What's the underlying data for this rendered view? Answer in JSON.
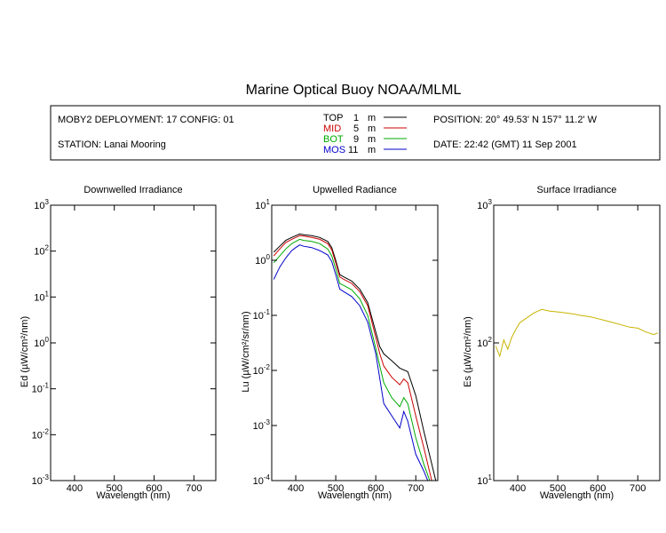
{
  "title": "Marine Optical Buoy NOAA/MLML",
  "header": {
    "deployment": "MOBY2 DEPLOYMENT: 17 CONFIG: 01",
    "station": "STATION: Lanai Mooring",
    "position": "POSITION: 20° 49.53' N   157° 11.2' W",
    "date": "DATE: 22:42 (GMT) 11 Sep 2001",
    "depths": [
      {
        "label": "TOP",
        "value": "1",
        "unit": "m",
        "color": "#000000"
      },
      {
        "label": "MID",
        "value": "5",
        "unit": "m",
        "color": "#cc0000"
      },
      {
        "label": "BOT",
        "value": "9",
        "unit": "m",
        "color": "#00aa00"
      },
      {
        "label": "MOS",
        "value": "11",
        "unit": "m",
        "color": "#0000cc"
      }
    ]
  },
  "chart_data": [
    {
      "type": "line",
      "title": "Downwelled Irradiance",
      "xlabel": "Wavelength (nm)",
      "ylabel": "Ed  (µW/cm²/nm)",
      "xlim": [
        340,
        755
      ],
      "ylim": [
        0.001,
        1000
      ],
      "yscale": "log",
      "xticks": [
        400,
        500,
        600,
        700
      ],
      "yticks": [
        {
          "base": "10",
          "exp": "3"
        },
        {
          "base": "10",
          "exp": "2"
        },
        {
          "base": "10",
          "exp": "1"
        },
        {
          "base": "10",
          "exp": "0"
        },
        {
          "base": "10",
          "exp": "-1"
        },
        {
          "base": "10",
          "exp": "-2"
        },
        {
          "base": "10",
          "exp": "-3"
        }
      ],
      "series": []
    },
    {
      "type": "line",
      "title": "Upwelled Radiance",
      "xlabel": "Wavelength (nm)",
      "ylabel": "Lu  (µW/cm²/sr/nm)",
      "xlim": [
        340,
        755
      ],
      "ylim": [
        0.0001,
        10
      ],
      "yscale": "log",
      "xticks": [
        400,
        500,
        600,
        700
      ],
      "yticks": [
        {
          "base": "10",
          "exp": "1"
        },
        {
          "base": "10",
          "exp": "0"
        },
        {
          "base": "10",
          "exp": "-1"
        },
        {
          "base": "10",
          "exp": "-2"
        },
        {
          "base": "10",
          "exp": "-3"
        },
        {
          "base": "10",
          "exp": "-4"
        }
      ],
      "series": [
        {
          "name": "TOP",
          "color": "#000000",
          "x": [
            345,
            360,
            375,
            390,
            400,
            410,
            420,
            440,
            460,
            480,
            490,
            500,
            510,
            520,
            540,
            560,
            580,
            600,
            610,
            620,
            640,
            660,
            680,
            700,
            720,
            740,
            750
          ],
          "y": [
            1.4,
            1.8,
            2.3,
            2.6,
            2.8,
            3.0,
            2.9,
            2.8,
            2.6,
            2.2,
            1.7,
            1.0,
            0.55,
            0.5,
            0.42,
            0.3,
            0.17,
            0.05,
            0.027,
            0.02,
            0.015,
            0.011,
            0.0095,
            0.0035,
            0.0008,
            0.0002,
            0.0001
          ]
        },
        {
          "name": "MID",
          "color": "#cc0000",
          "x": [
            345,
            360,
            375,
            390,
            400,
            410,
            420,
            440,
            460,
            480,
            490,
            500,
            510,
            520,
            540,
            560,
            580,
            600,
            610,
            620,
            640,
            660,
            670,
            680,
            700,
            720,
            740
          ],
          "y": [
            1.2,
            1.6,
            2.1,
            2.4,
            2.6,
            2.8,
            2.75,
            2.6,
            2.4,
            2.0,
            1.55,
            0.9,
            0.5,
            0.45,
            0.38,
            0.27,
            0.15,
            0.04,
            0.02,
            0.012,
            0.0075,
            0.0055,
            0.007,
            0.006,
            0.0015,
            0.0004,
            0.0001
          ]
        },
        {
          "name": "BOT",
          "color": "#00aa00",
          "x": [
            345,
            360,
            375,
            390,
            400,
            410,
            420,
            440,
            460,
            480,
            490,
            500,
            510,
            520,
            540,
            560,
            580,
            600,
            610,
            620,
            640,
            660,
            670,
            680,
            700,
            720,
            735
          ],
          "y": [
            0.9,
            1.2,
            1.6,
            2.0,
            2.2,
            2.4,
            2.3,
            2.2,
            2.0,
            1.6,
            1.2,
            0.7,
            0.38,
            0.35,
            0.29,
            0.2,
            0.1,
            0.025,
            0.012,
            0.006,
            0.0032,
            0.0022,
            0.0032,
            0.0025,
            0.0006,
            0.0002,
            0.0001
          ]
        },
        {
          "name": "MOS",
          "color": "#0000cc",
          "x": [
            345,
            360,
            375,
            390,
            400,
            410,
            420,
            440,
            460,
            480,
            490,
            500,
            510,
            520,
            540,
            560,
            580,
            600,
            620,
            640,
            660,
            670,
            680,
            700,
            720,
            730
          ],
          "y": [
            0.45,
            0.75,
            1.1,
            1.5,
            1.7,
            1.9,
            1.8,
            1.7,
            1.5,
            1.25,
            0.95,
            0.55,
            0.3,
            0.27,
            0.22,
            0.15,
            0.075,
            0.02,
            0.0025,
            0.0015,
            0.0009,
            0.0018,
            0.0012,
            0.0003,
            0.00015,
            0.0001
          ]
        }
      ]
    },
    {
      "type": "line",
      "title": "Surface Irradiance",
      "xlabel": "Wavelength (nm)",
      "ylabel": "Es  (µW/cm²/nm)",
      "xlim": [
        340,
        755
      ],
      "ylim": [
        10,
        1000
      ],
      "yscale": "log",
      "xticks": [
        400,
        500,
        600,
        700
      ],
      "yticks": [
        {
          "base": "10",
          "exp": "3"
        },
        {
          "base": "10",
          "exp": "2"
        },
        {
          "base": "10",
          "exp": "1"
        }
      ],
      "series": [
        {
          "color": "#c8b400",
          "x": [
            345,
            355,
            365,
            375,
            385,
            395,
            405,
            420,
            440,
            460,
            480,
            500,
            520,
            540,
            560,
            580,
            600,
            620,
            640,
            660,
            680,
            700,
            720,
            740,
            750
          ],
          "y": [
            95,
            80,
            105,
            90,
            110,
            125,
            140,
            150,
            165,
            175,
            170,
            168,
            165,
            162,
            158,
            155,
            150,
            145,
            140,
            135,
            130,
            128,
            120,
            115,
            118
          ]
        }
      ]
    }
  ]
}
